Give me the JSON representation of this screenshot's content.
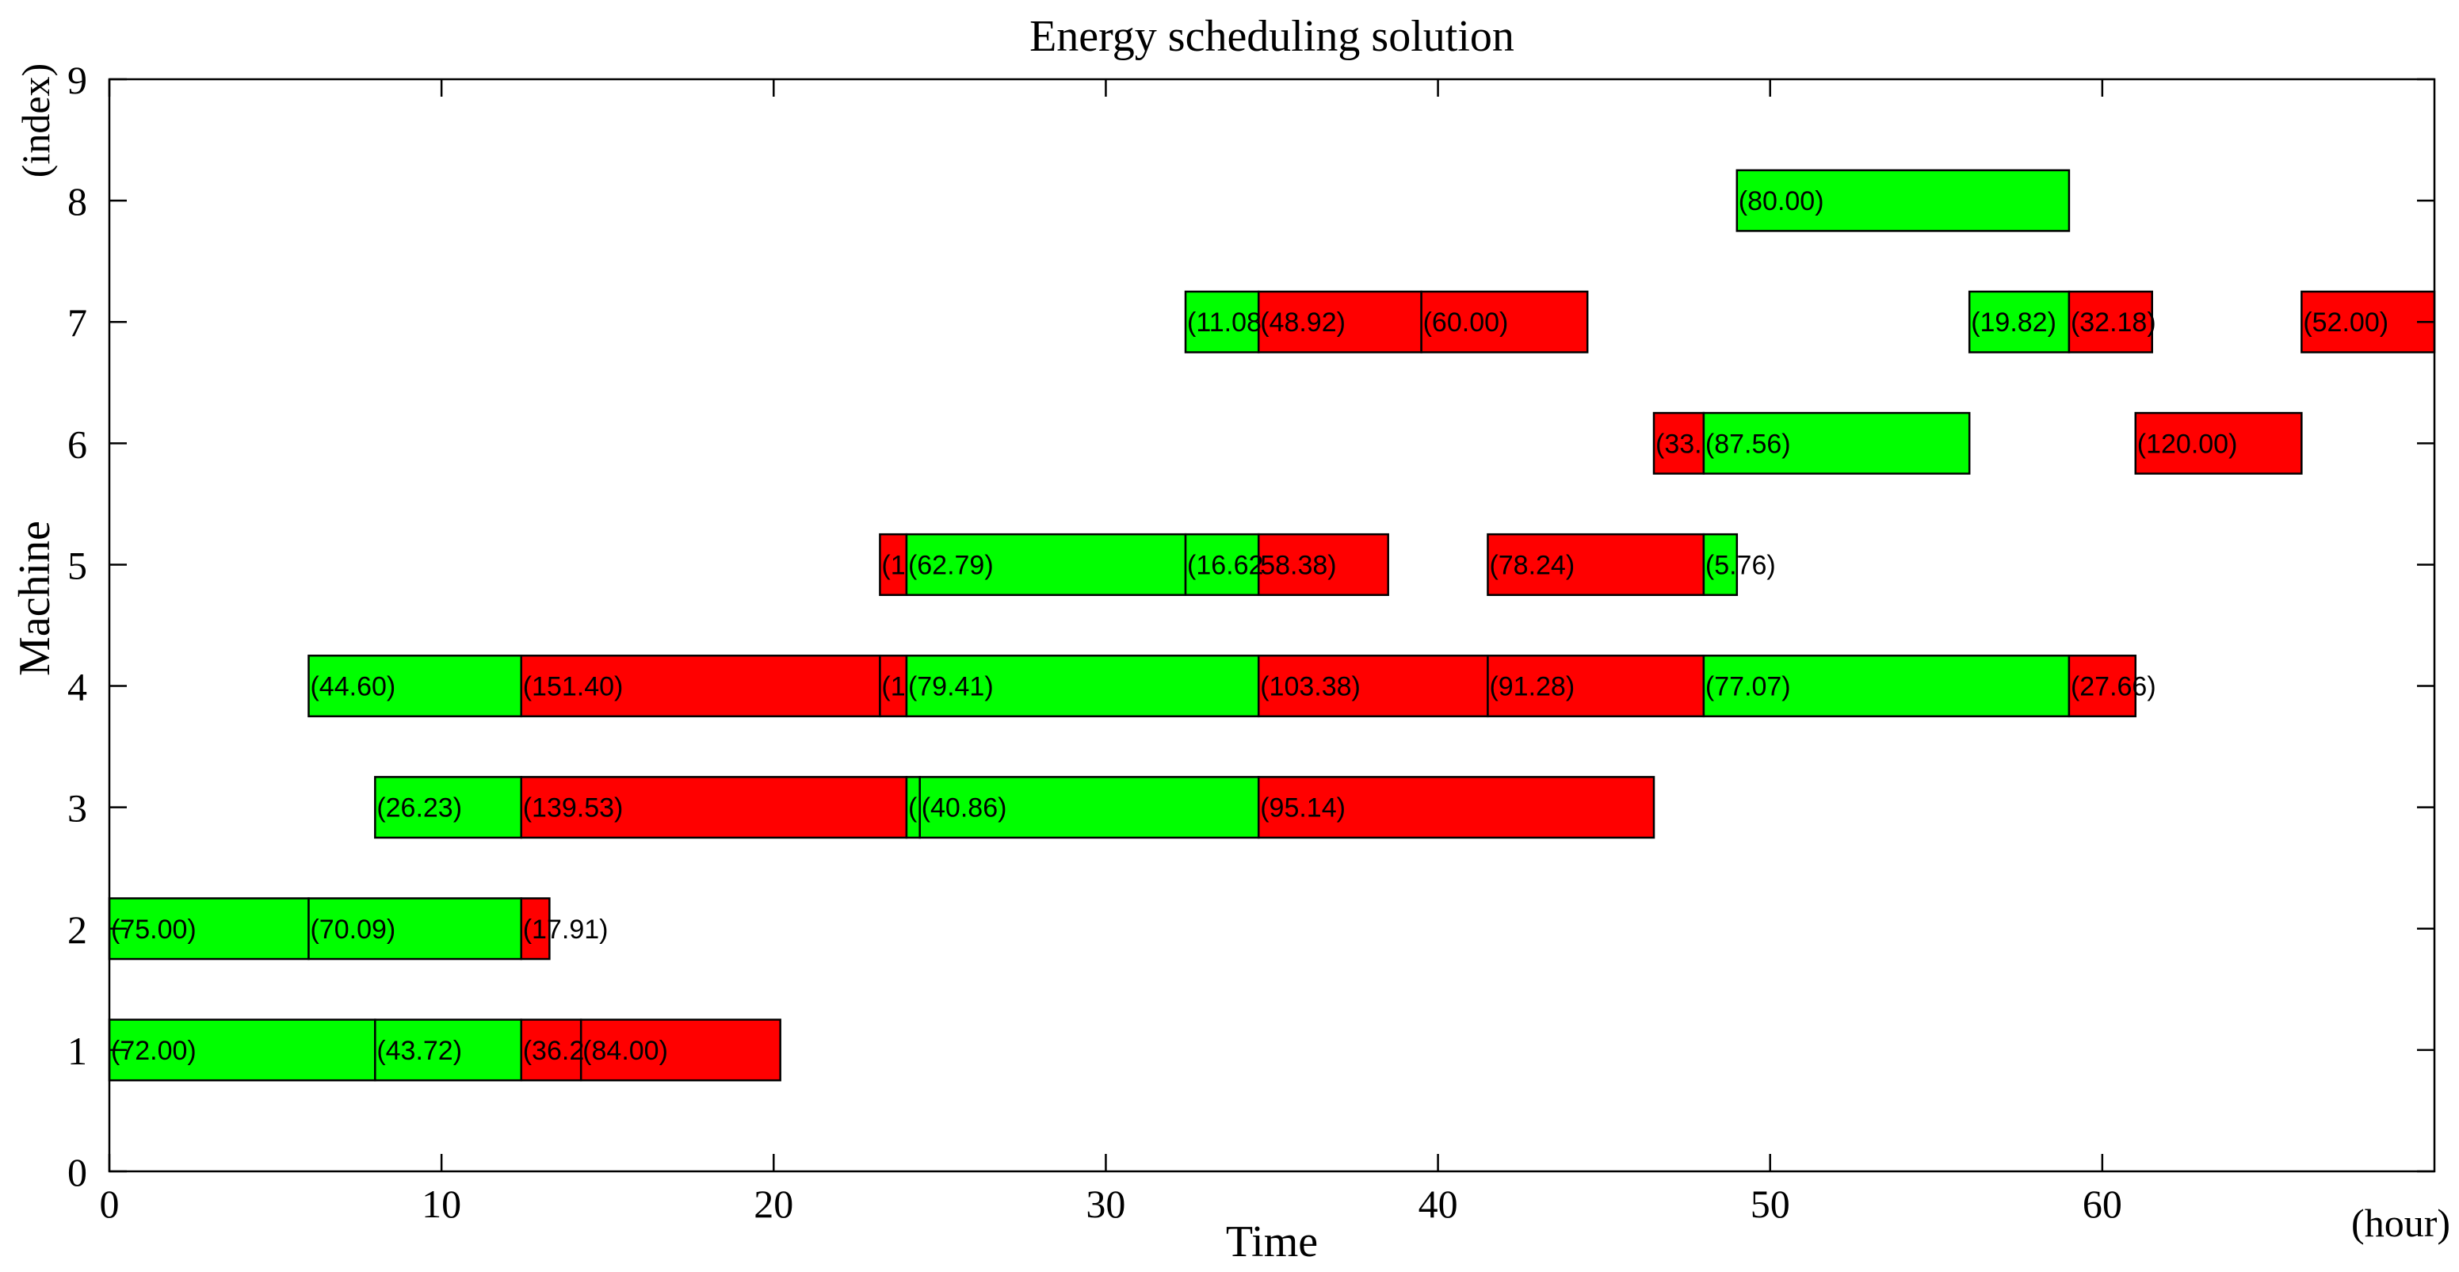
{
  "chart_data": {
    "type": "gantt",
    "title": "Energy scheduling solution",
    "xlabel": "Time",
    "xunit": "(hour)",
    "ylabel": "Machine",
    "yunit": "(index)",
    "xlim": [
      0,
      70
    ],
    "ylim": [
      0,
      9
    ],
    "xticks": [
      0,
      10,
      20,
      30,
      40,
      50,
      60
    ],
    "yticks": [
      0,
      1,
      2,
      3,
      4,
      5,
      6,
      7,
      8,
      9
    ],
    "grid": false,
    "colors": {
      "green": "#00ff00",
      "red": "#ff0000",
      "edge": "#000000",
      "label": "#000000"
    },
    "tasks": [
      {
        "machine": 1,
        "start": 0.0,
        "end": 8.0,
        "color": "green",
        "label": "(72.00)"
      },
      {
        "machine": 1,
        "start": 8.0,
        "end": 12.4,
        "color": "green",
        "label": "(43.72)"
      },
      {
        "machine": 1,
        "start": 12.4,
        "end": 14.2,
        "color": "red",
        "label": "(36.2"
      },
      {
        "machine": 1,
        "start": 14.2,
        "end": 20.2,
        "color": "red",
        "label": "(84.00)"
      },
      {
        "machine": 2,
        "start": 0.0,
        "end": 6.0,
        "color": "green",
        "label": "(75.00)"
      },
      {
        "machine": 2,
        "start": 6.0,
        "end": 12.4,
        "color": "green",
        "label": "(70.09)"
      },
      {
        "machine": 2,
        "start": 12.4,
        "end": 13.25,
        "color": "red",
        "label": "(17.91)"
      },
      {
        "machine": 3,
        "start": 8.0,
        "end": 12.4,
        "color": "green",
        "label": "(26.23)"
      },
      {
        "machine": 3,
        "start": 12.4,
        "end": 24.0,
        "color": "red",
        "label": "(139.53)"
      },
      {
        "machine": 3,
        "start": 24.0,
        "end": 24.4,
        "color": "green",
        "label": "("
      },
      {
        "machine": 3,
        "start": 24.4,
        "end": 34.6,
        "color": "green",
        "label": "(40.86)"
      },
      {
        "machine": 3,
        "start": 34.6,
        "end": 46.5,
        "color": "red",
        "label": "(95.14)"
      },
      {
        "machine": 4,
        "start": 6.0,
        "end": 12.4,
        "color": "green",
        "label": "(44.60)"
      },
      {
        "machine": 4,
        "start": 12.4,
        "end": 23.2,
        "color": "red",
        "label": "(151.40)"
      },
      {
        "machine": 4,
        "start": 23.2,
        "end": 24.0,
        "color": "red",
        "label": "(1"
      },
      {
        "machine": 4,
        "start": 24.0,
        "end": 34.6,
        "color": "green",
        "label": "(79.41)"
      },
      {
        "machine": 4,
        "start": 34.6,
        "end": 41.5,
        "color": "red",
        "label": "(103.38)"
      },
      {
        "machine": 4,
        "start": 41.5,
        "end": 48.0,
        "color": "red",
        "label": "(91.28)"
      },
      {
        "machine": 4,
        "start": 48.0,
        "end": 59.0,
        "color": "green",
        "label": "(77.07)"
      },
      {
        "machine": 4,
        "start": 59.0,
        "end": 61.0,
        "color": "red",
        "label": "(27.66)"
      },
      {
        "machine": 5,
        "start": 23.2,
        "end": 24.0,
        "color": "red",
        "label": "(1"
      },
      {
        "machine": 5,
        "start": 24.0,
        "end": 32.4,
        "color": "green",
        "label": "(62.79)"
      },
      {
        "machine": 5,
        "start": 32.4,
        "end": 34.6,
        "color": "green",
        "label": "(16.62"
      },
      {
        "machine": 5,
        "start": 34.6,
        "end": 38.5,
        "color": "red",
        "label": "58.38)"
      },
      {
        "machine": 5,
        "start": 41.5,
        "end": 48.0,
        "color": "red",
        "label": "(78.24)"
      },
      {
        "machine": 5,
        "start": 48.0,
        "end": 49.0,
        "color": "green",
        "label": "(5.76)"
      },
      {
        "machine": 6,
        "start": 46.5,
        "end": 48.0,
        "color": "red",
        "label": "(33."
      },
      {
        "machine": 6,
        "start": 48.0,
        "end": 56.0,
        "color": "green",
        "label": "(87.56)"
      },
      {
        "machine": 6,
        "start": 61.0,
        "end": 66.0,
        "color": "red",
        "label": "(120.00)"
      },
      {
        "machine": 7,
        "start": 32.4,
        "end": 34.6,
        "color": "green",
        "label": "(11.08"
      },
      {
        "machine": 7,
        "start": 34.6,
        "end": 39.5,
        "color": "red",
        "label": "(48.92)"
      },
      {
        "machine": 7,
        "start": 39.5,
        "end": 44.5,
        "color": "red",
        "label": "(60.00)"
      },
      {
        "machine": 7,
        "start": 56.0,
        "end": 59.0,
        "color": "green",
        "label": "(19.82)"
      },
      {
        "machine": 7,
        "start": 59.0,
        "end": 61.5,
        "color": "red",
        "label": "(32.18)"
      },
      {
        "machine": 7,
        "start": 66.0,
        "end": 70.0,
        "color": "red",
        "label": "(52.00)"
      },
      {
        "machine": 8,
        "start": 49.0,
        "end": 59.0,
        "color": "green",
        "label": "(80.00)"
      }
    ]
  }
}
